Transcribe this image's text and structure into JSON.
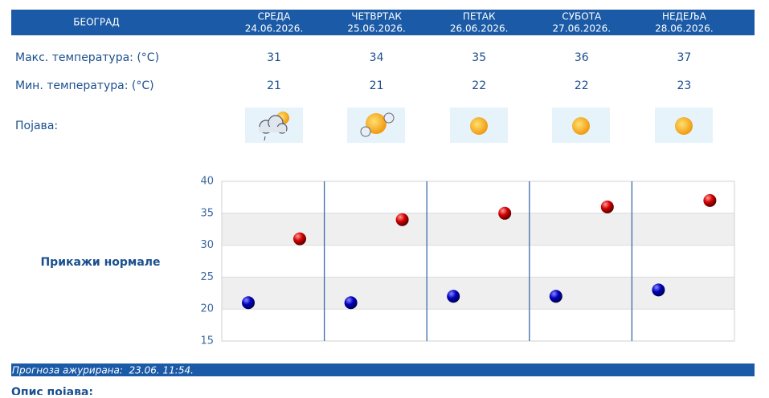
{
  "header": {
    "city": "БЕОГРАД",
    "days": [
      {
        "name": "СРЕДА",
        "date": "24.06.2026."
      },
      {
        "name": "ЧЕТВРТАК",
        "date": "25.06.2026."
      },
      {
        "name": "ПЕТАК",
        "date": "26.06.2026."
      },
      {
        "name": "СУБОТА",
        "date": "27.06.2026."
      },
      {
        "name": "НЕДЕЉА",
        "date": "28.06.2026."
      }
    ]
  },
  "phenomenon_label": "Појава:",
  "normals_link": "Прикажи нормале",
  "chart_data": {
    "type": "dot",
    "ylim": [
      15,
      40
    ],
    "yticks": [
      15,
      20,
      25,
      30,
      35,
      40
    ],
    "series": [
      {
        "name": "Макс. температура: (°C)",
        "color": "#d40000",
        "values": [
          31,
          34,
          35,
          36,
          37
        ]
      },
      {
        "name": "Мин. температура: (°C)",
        "color": "#0000c0",
        "values": [
          21,
          21,
          22,
          22,
          23
        ]
      }
    ]
  },
  "footer": {
    "updated": "Прогноза ажурирана:  23.06. 11:54.",
    "description_title": "Опис појава:"
  }
}
